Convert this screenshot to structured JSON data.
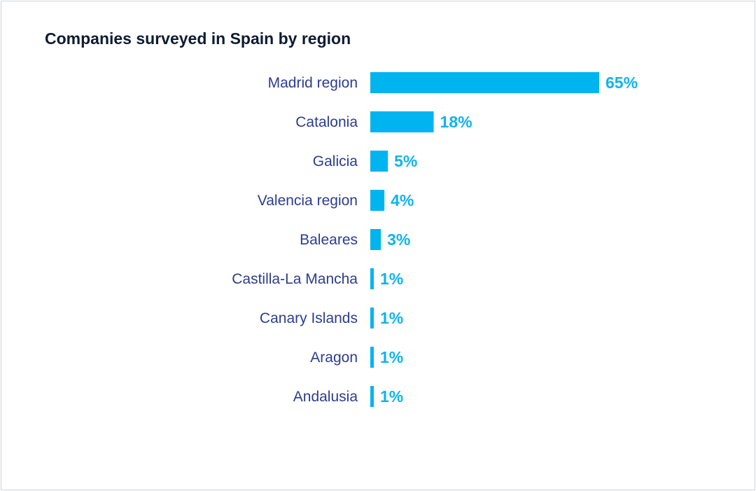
{
  "chart_data": {
    "type": "bar",
    "orientation": "horizontal",
    "title": "Companies surveyed in Spain by region",
    "categories": [
      "Madrid region",
      "Catalonia",
      "Galicia",
      "Valencia region",
      "Baleares",
      "Castilla-La Mancha",
      "Canary Islands",
      "Aragon",
      "Andalusia"
    ],
    "values": [
      65,
      18,
      5,
      4,
      3,
      1,
      1,
      1,
      1
    ],
    "value_labels": [
      "65%",
      "18%",
      "5%",
      "4%",
      "3%",
      "1%",
      "1%",
      "1%",
      "1%"
    ],
    "unit": "%",
    "bar_color": "#00b4f0",
    "label_color": "#2c3d8f",
    "value_label_color": "#10b3ee",
    "grid": false,
    "legend": "none"
  }
}
